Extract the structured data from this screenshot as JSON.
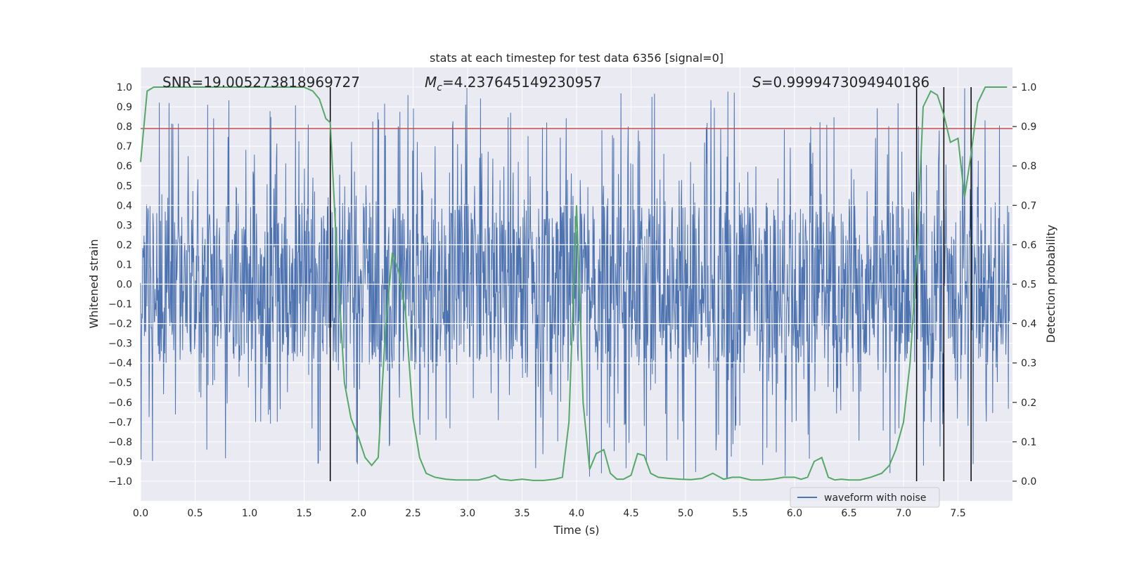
{
  "chart_data": {
    "type": "line",
    "title": "stats at each timestep for test data 6356 [signal=0]",
    "xlabel": "Time (s)",
    "ylabel": "Whitened strain",
    "y2label": "Detection probability",
    "xlim": [
      0.0,
      8.0
    ],
    "ylim": [
      -1.1,
      1.1
    ],
    "y2lim": [
      -0.05,
      1.05
    ],
    "xticks": [
      "0.0",
      "0.5",
      "1.0",
      "1.5",
      "2.0",
      "2.5",
      "3.0",
      "3.5",
      "4.0",
      "4.5",
      "5.0",
      "5.5",
      "6.0",
      "6.5",
      "7.0",
      "7.5"
    ],
    "xtick_values": [
      0.0,
      0.5,
      1.0,
      1.5,
      2.0,
      2.5,
      3.0,
      3.5,
      4.0,
      4.5,
      5.0,
      5.5,
      6.0,
      6.5,
      7.0,
      7.5
    ],
    "yticks": [
      "−1.0",
      "−0.9",
      "−0.8",
      "−0.7",
      "−0.6",
      "−0.5",
      "−0.4",
      "−0.3",
      "−0.2",
      "−0.1",
      "0.0",
      "0.1",
      "0.2",
      "0.3",
      "0.4",
      "0.5",
      "0.6",
      "0.7",
      "0.8",
      "0.9",
      "1.0"
    ],
    "ytick_values": [
      -1.0,
      -0.9,
      -0.8,
      -0.7,
      -0.6,
      -0.5,
      -0.4,
      -0.3,
      -0.2,
      -0.1,
      0.0,
      0.1,
      0.2,
      0.3,
      0.4,
      0.5,
      0.6,
      0.7,
      0.8,
      0.9,
      1.0
    ],
    "y2ticks": [
      "0.0",
      "0.1",
      "0.2",
      "0.3",
      "0.4",
      "0.5",
      "0.6",
      "0.7",
      "0.8",
      "0.9",
      "1.0"
    ],
    "y2tick_values": [
      0.0,
      0.1,
      0.2,
      0.3,
      0.4,
      0.5,
      0.6,
      0.7,
      0.8,
      0.9,
      1.0
    ],
    "annotations": {
      "snr": "SNR=19.005273818969727",
      "mc_symbol": "M",
      "mc_sub": "c",
      "mc_value": "=4.237645149230957",
      "s_symbol": "S",
      "s_value": "=0.9999473094940186"
    },
    "legend": {
      "label": "waveform with noise",
      "location": "lower right"
    },
    "threshold_line": {
      "y": 0.79,
      "color": "#c44e52"
    },
    "vertical_lines": {
      "x": [
        1.74,
        7.12,
        7.37,
        7.62
      ],
      "y_range": [
        -1.0,
        1.0
      ],
      "color": "#000000"
    },
    "waveform": {
      "name": "waveform with noise",
      "color": "#4c72b0",
      "samples": 2048,
      "core_amplitude": 0.39,
      "peak_range": [
        -1.0,
        1.0
      ]
    },
    "probability": {
      "name": "Detection probability",
      "color": "#55a868",
      "x": [
        0.0,
        0.06,
        0.12,
        0.2,
        0.3,
        0.4,
        0.5,
        0.6,
        0.7,
        0.8,
        0.9,
        1.0,
        1.1,
        1.2,
        1.3,
        1.4,
        1.5,
        1.58,
        1.64,
        1.7,
        1.74,
        1.8,
        1.87,
        1.93,
        2.0,
        2.06,
        2.12,
        2.18,
        2.25,
        2.31,
        2.37,
        2.43,
        2.5,
        2.56,
        2.62,
        2.7,
        2.8,
        2.9,
        3.0,
        3.1,
        3.2,
        3.25,
        3.3,
        3.4,
        3.5,
        3.6,
        3.7,
        3.8,
        3.87,
        3.93,
        4.0,
        4.06,
        4.12,
        4.18,
        4.25,
        4.31,
        4.37,
        4.43,
        4.5,
        4.56,
        4.62,
        4.68,
        4.75,
        4.85,
        4.95,
        5.05,
        5.15,
        5.25,
        5.35,
        5.43,
        5.5,
        5.6,
        5.7,
        5.8,
        5.9,
        6.0,
        6.06,
        6.12,
        6.18,
        6.25,
        6.31,
        6.37,
        6.43,
        6.5,
        6.6,
        6.7,
        6.8,
        6.87,
        6.93,
        7.0,
        7.06,
        7.12,
        7.18,
        7.25,
        7.31,
        7.37,
        7.43,
        7.5,
        7.56,
        7.62,
        7.68,
        7.75,
        7.85,
        7.95
      ],
      "y": [
        0.81,
        0.99,
        1.0,
        1.0,
        1.0,
        1.0,
        1.0,
        1.0,
        1.0,
        1.0,
        1.0,
        1.0,
        1.0,
        1.0,
        1.0,
        1.0,
        1.0,
        0.99,
        0.97,
        0.92,
        0.91,
        0.58,
        0.25,
        0.16,
        0.11,
        0.06,
        0.04,
        0.06,
        0.4,
        0.58,
        0.53,
        0.43,
        0.16,
        0.06,
        0.02,
        0.01,
        0.005,
        0.003,
        0.003,
        0.003,
        0.01,
        0.015,
        0.005,
        0.002,
        0.005,
        0.002,
        0.002,
        0.005,
        0.01,
        0.15,
        0.7,
        0.2,
        0.03,
        0.07,
        0.08,
        0.02,
        0.005,
        0.005,
        0.015,
        0.07,
        0.065,
        0.02,
        0.01,
        0.007,
        0.005,
        0.004,
        0.007,
        0.02,
        0.005,
        0.01,
        0.01,
        0.003,
        0.003,
        0.005,
        0.01,
        0.01,
        0.005,
        0.01,
        0.05,
        0.06,
        0.01,
        0.003,
        0.005,
        0.003,
        0.003,
        0.01,
        0.02,
        0.04,
        0.08,
        0.15,
        0.3,
        0.56,
        0.95,
        0.99,
        0.98,
        0.93,
        0.86,
        0.87,
        0.72,
        0.83,
        0.96,
        1.0,
        1.0,
        1.0
      ]
    },
    "background": "#eaeaf2",
    "grid": true
  }
}
